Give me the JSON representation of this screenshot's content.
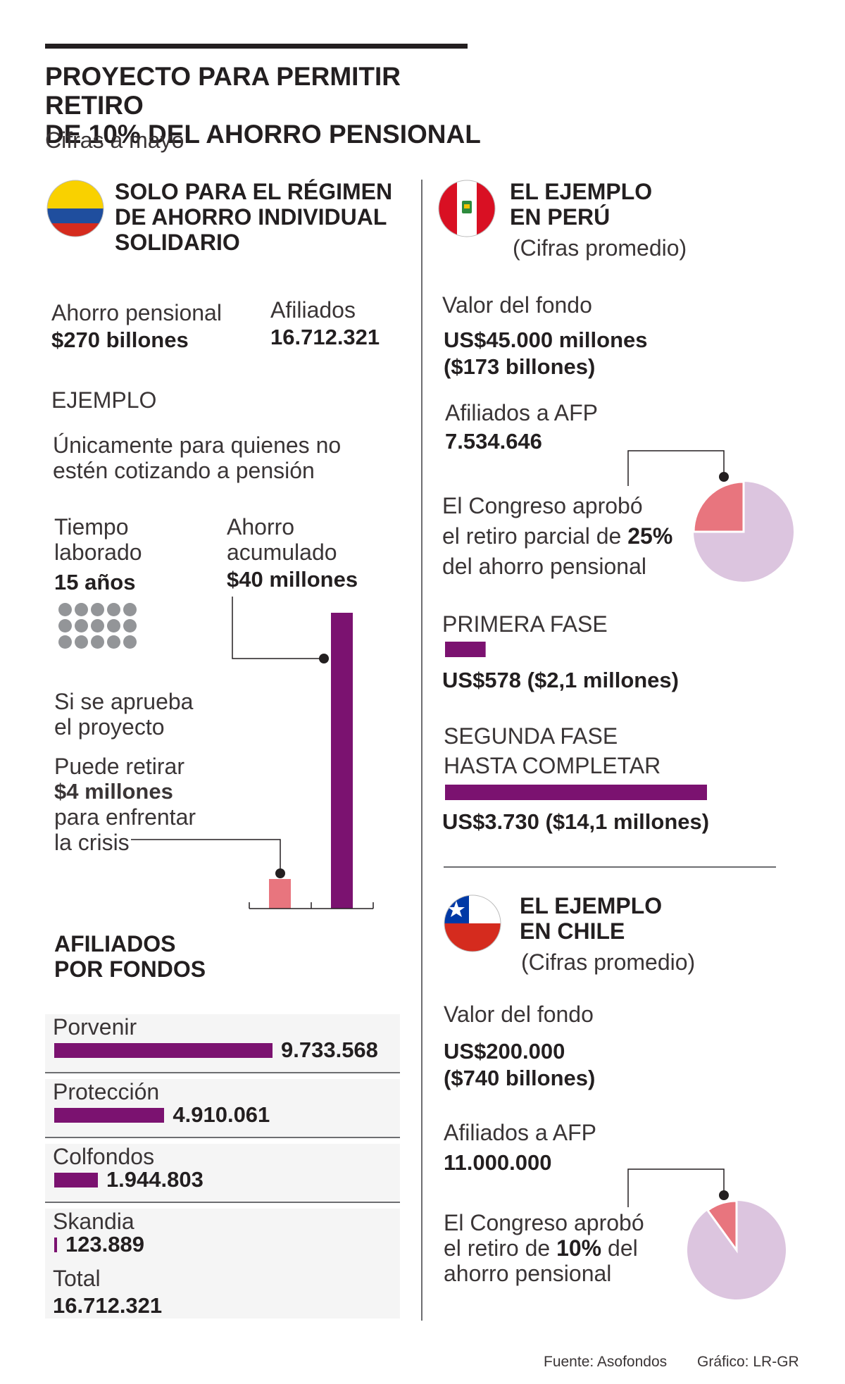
{
  "header": {
    "title_line1": "PROYECTO PARA PERMITIR RETIRO",
    "title_line2": "DE 10% DEL AHORRO PENSIONAL",
    "subtitle": "Cifras a mayo"
  },
  "colombia": {
    "heading_line1": "SOLO PARA EL RÉGIMEN",
    "heading_line2": "DE AHORRO INDIVIDUAL",
    "heading_line3": "SOLIDARIO",
    "ahorro_label": "Ahorro pensional",
    "ahorro_value": "$270 billones",
    "afiliados_label": "Afiliados",
    "afiliados_value": "16.712.321",
    "ejemplo_label": "EJEMPLO",
    "ejemplo_desc_line1": "Únicamente para quienes no",
    "ejemplo_desc_line2": "estén cotizando a pensión",
    "tiempo_label_line1": "Tiempo",
    "tiempo_label_line2": "laborado",
    "tiempo_value": "15 años",
    "ahorro_acum_line1": "Ahorro",
    "ahorro_acum_line2": "acumulado",
    "ahorro_acum_value": "$40 millones",
    "si_line1": "Si se aprueba",
    "si_line2": "el proyecto",
    "puede_line1": "Puede retirar",
    "puede_value": "$4 millones",
    "puede_line3": "para enfrentar",
    "puede_line4": "la crisis"
  },
  "fondos": {
    "heading_line1": "AFILIADOS",
    "heading_line2": "POR FONDOS",
    "total_label": "Total",
    "total_value": "16.712.321"
  },
  "peru": {
    "heading_line1": "EL EJEMPLO",
    "heading_line2": "EN PERÚ",
    "note": "(Cifras promedio)",
    "valor_label": "Valor del fondo",
    "valor_line1": "US$45.000 millones",
    "valor_line2": "($173 billones)",
    "afiliados_label": "Afiliados a AFP",
    "afiliados_value": "7.534.646",
    "congreso_line1": "El Congreso aprobó",
    "congreso_line2_pre": "el retiro parcial de ",
    "congreso_pct": "25%",
    "congreso_line3": "del ahorro pensional",
    "fase1_label": "PRIMERA FASE",
    "fase1_value": "US$578 ($2,1 millones)",
    "fase2_line1": "SEGUNDA FASE",
    "fase2_line2": "HASTA COMPLETAR",
    "fase2_value": "US$3.730 ($14,1 millones)"
  },
  "chile": {
    "heading_line1": "EL EJEMPLO",
    "heading_line2": "EN CHILE",
    "note": "(Cifras promedio)",
    "valor_label": "Valor del fondo",
    "valor_line1": "US$200.000",
    "valor_line2": "($740 billones)",
    "afiliados_label": "Afiliados a AFP",
    "afiliados_value": "11.000.000",
    "congreso_line1": "El Congreso aprobó",
    "congreso_line2_pre": "el retiro de ",
    "congreso_pct": "10%",
    "congreso_line2_post": " del",
    "congreso_line3": "ahorro pensional"
  },
  "footer": {
    "fuente": "Fuente: Asofondos",
    "grafico": "Gráfico: LR-GR"
  },
  "colors": {
    "purple": "#7b1270",
    "pink": "#e8757e",
    "lavender": "#dcc5df",
    "dark": "#231f20",
    "gray_dot": "#939598"
  },
  "chart_data": [
    {
      "type": "bar",
      "categories": [
        "Porvenir",
        "Protección",
        "Colfondos",
        "Skandia"
      ],
      "values": [
        9733568,
        4910061,
        1944803,
        123889
      ],
      "value_labels": [
        "9.733.568",
        "4.910.061",
        "1.944.803",
        "123.889"
      ]
    },
    {
      "type": "bar",
      "categories": [
        "$4 millones",
        "$40 millones"
      ],
      "values": [
        4,
        40
      ]
    },
    {
      "type": "pie",
      "values": [
        25,
        75
      ]
    },
    {
      "type": "bar",
      "categories": [
        "PRIMERA FASE",
        "SEGUNDA FASE"
      ],
      "values": [
        578,
        3730
      ]
    },
    {
      "type": "pie",
      "values": [
        10,
        90
      ]
    }
  ]
}
